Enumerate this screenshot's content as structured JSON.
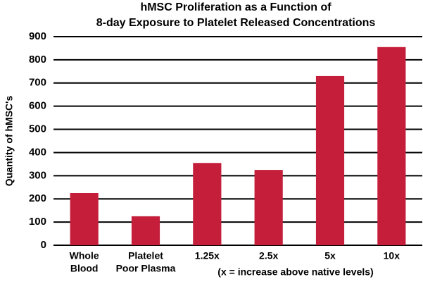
{
  "chart_data": {
    "type": "bar",
    "title": [
      "hMSC Proliferation as a Function of",
      "8-day Exposure to Platelet Released Concentrations"
    ],
    "y_label": "Quantity of hMSC's",
    "categories": [
      [
        "Whole",
        "Blood"
      ],
      [
        "Platelet",
        "Poor Plasma"
      ],
      [
        "1.25x"
      ],
      [
        "2.5x"
      ],
      [
        "5x"
      ],
      [
        "10x"
      ]
    ],
    "values": [
      225,
      125,
      355,
      325,
      730,
      855
    ],
    "color": "#c41e3a",
    "annotation": "(x = increase above native levels)",
    "ylim": [
      0,
      900
    ],
    "yticks": [
      0,
      100,
      200,
      300,
      400,
      500,
      600,
      700,
      800,
      900
    ],
    "grid": true
  }
}
